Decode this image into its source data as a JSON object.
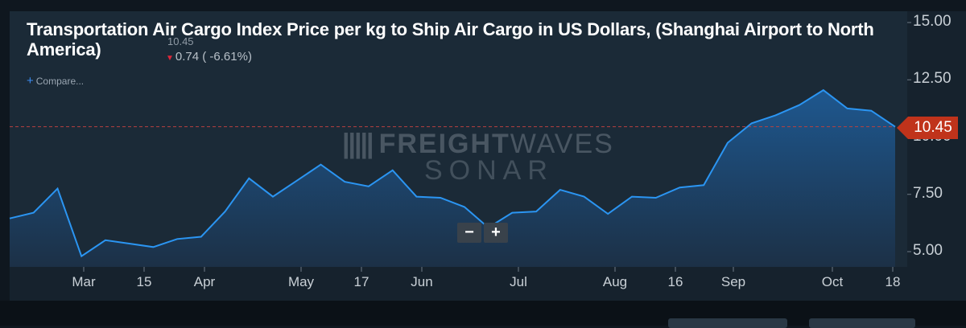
{
  "header": {
    "title": "Transportation Air Cargo Index Price per kg to Ship Air Cargo in US Dollars, (Shanghai Airport to North America)",
    "last_value": "10.45",
    "change": "0.74 ( -6.61%)",
    "compare_label": "Compare..."
  },
  "watermark": {
    "brand_bold": "FREIGHT",
    "brand_light": "WAVES",
    "sub": "SONAR"
  },
  "controls": {
    "zoom_out": "−",
    "zoom_in": "+"
  },
  "colors": {
    "line": "#2b95f2",
    "area_top": "#1e5a94",
    "area_bottom": "#1c3148",
    "reference_line": "#b84040",
    "last_tag": "#c0331b"
  },
  "chart_data": {
    "type": "area",
    "title": "Transportation Air Cargo Index Price per kg to Ship Air Cargo in US Dollars, (Shanghai Airport to North America)",
    "xlabel": "",
    "ylabel": "",
    "ylim": [
      4.5,
      15.5
    ],
    "y_ticks": [
      "15.00",
      "12.50",
      "10.00",
      "7.50",
      "5.00"
    ],
    "x_ticks": [
      "Mar",
      "15",
      "Apr",
      "May",
      "17",
      "Jun",
      "Jul",
      "Aug",
      "16",
      "Sep",
      "Oct",
      "18"
    ],
    "grid": false,
    "last_value": 10.45,
    "series": [
      {
        "values": [
          6.45,
          6.7,
          7.75,
          4.8,
          5.5,
          5.35,
          5.2,
          5.55,
          5.65,
          6.75,
          8.2,
          7.4,
          8.1,
          8.8,
          8.05,
          7.85,
          8.55,
          7.4,
          7.35,
          6.95,
          6.05,
          6.7,
          6.75,
          7.7,
          7.4,
          6.65,
          7.4,
          7.35,
          7.8,
          7.9,
          9.75,
          10.6,
          10.95,
          11.4,
          12.05,
          11.25,
          11.15,
          10.45
        ]
      }
    ]
  }
}
